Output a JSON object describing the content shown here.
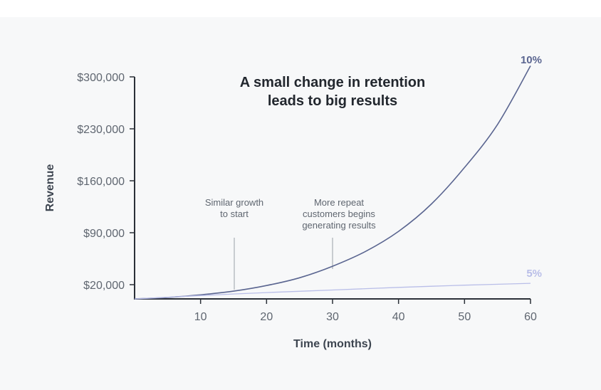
{
  "chart_data": {
    "type": "line",
    "title_lines": [
      "A small change in retention",
      "leads to big results"
    ],
    "xlabel": "Time (months)",
    "ylabel": "Revenue",
    "x_ticks": [
      10,
      20,
      30,
      40,
      50,
      60
    ],
    "y_ticks": [
      "$20,000",
      "$90,000",
      "$160,000",
      "$230,000",
      "$300,000"
    ],
    "y_tick_values": [
      20000,
      90000,
      160000,
      230000,
      300000
    ],
    "xlim": [
      0,
      60
    ],
    "ylim": [
      0,
      300000
    ],
    "grid": false,
    "series": [
      {
        "name": "10%",
        "color": "#5a6590",
        "x": [
          0,
          5,
          10,
          15,
          20,
          25,
          30,
          35,
          40,
          45,
          50,
          55,
          60
        ],
        "y": [
          0,
          2000,
          5500,
          10500,
          18000,
          28500,
          44000,
          64000,
          91000,
          128000,
          177000,
          235000,
          314000
        ]
      },
      {
        "name": "5%",
        "color": "#b9bee8",
        "x": [
          0,
          10,
          20,
          30,
          40,
          50,
          60
        ],
        "y": [
          0,
          4500,
          8500,
          12000,
          15500,
          18500,
          21000
        ]
      }
    ],
    "annotations": [
      {
        "lines": [
          "Similar growth",
          "to start"
        ]
      },
      {
        "lines": [
          "More repeat",
          "customers begins",
          "generating results"
        ]
      }
    ]
  }
}
